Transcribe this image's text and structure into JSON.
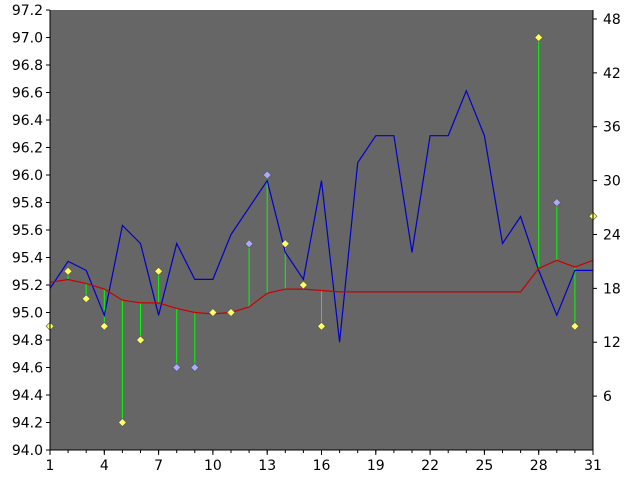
{
  "colors": {
    "plot_background": "#666666",
    "page_background": "#ffffff",
    "line_series": "#0000cc",
    "average_series": "#cc0000",
    "stem": "#00ff00",
    "marker_yellow": "#ffff66",
    "marker_blue": "#aaaaff",
    "axis": "#000000"
  },
  "chart_data": {
    "type": "line",
    "x": [
      1,
      2,
      3,
      4,
      5,
      6,
      7,
      8,
      9,
      10,
      11,
      12,
      13,
      14,
      15,
      16,
      17,
      18,
      19,
      20,
      21,
      22,
      23,
      24,
      25,
      26,
      27,
      28,
      29,
      30,
      31
    ],
    "xlim": [
      1,
      31
    ],
    "x_ticks": [
      "1",
      "4",
      "7",
      "10",
      "13",
      "16",
      "19",
      "22",
      "25",
      "28",
      "31"
    ],
    "y_left": {
      "lim": [
        94.0,
        97.2
      ],
      "ticks": [
        "94.0",
        "94.2",
        "94.4",
        "94.6",
        "94.8",
        "95.0",
        "95.2",
        "95.4",
        "95.6",
        "95.8",
        "96.0",
        "96.2",
        "96.4",
        "96.6",
        "96.8",
        "97.0",
        "97.2"
      ]
    },
    "y_right": {
      "lim": [
        0,
        49
      ],
      "ticks": [
        "6",
        "12",
        "18",
        "24",
        "30",
        "36",
        "42",
        "48"
      ]
    },
    "grid": false,
    "series": [
      {
        "axis": "right",
        "color": "#0000cc",
        "style": "line",
        "values": [
          18,
          21,
          20,
          15,
          25,
          23,
          15,
          23,
          19,
          19,
          24,
          27,
          30,
          22,
          19,
          30,
          12,
          32,
          35,
          35,
          22,
          35,
          35,
          40,
          35,
          23,
          26,
          20,
          15,
          20,
          20
        ]
      },
      {
        "axis": "left",
        "color": "#cc0000",
        "style": "line",
        "values": [
          95.22,
          95.24,
          95.21,
          95.17,
          95.09,
          95.07,
          95.07,
          95.03,
          95.0,
          94.99,
          95.0,
          95.04,
          95.14,
          95.17,
          95.17,
          95.16,
          95.15,
          95.15,
          95.15,
          95.15,
          95.15,
          95.15,
          95.15,
          95.15,
          95.15,
          95.15,
          95.15,
          95.32,
          95.38,
          95.33,
          95.38
        ]
      },
      {
        "axis": "left",
        "style": "stem-markers",
        "values": [
          94.9,
          95.3,
          95.1,
          94.9,
          94.2,
          94.8,
          95.3,
          94.6,
          94.6,
          95.0,
          95.0,
          95.5,
          96.0,
          95.5,
          95.2,
          94.9,
          null,
          null,
          null,
          null,
          null,
          null,
          null,
          null,
          null,
          null,
          null,
          97.0,
          95.8,
          94.9,
          95.7
        ],
        "marker_colors": [
          "yellow",
          "yellow",
          "yellow",
          "yellow",
          "yellow",
          "yellow",
          "yellow",
          "blue",
          "blue",
          "yellow",
          "yellow",
          "blue",
          "blue",
          "yellow",
          "yellow",
          "yellow",
          null,
          null,
          null,
          null,
          null,
          null,
          null,
          null,
          null,
          null,
          null,
          "yellow",
          "blue",
          "yellow",
          "yellow"
        ]
      }
    ]
  }
}
